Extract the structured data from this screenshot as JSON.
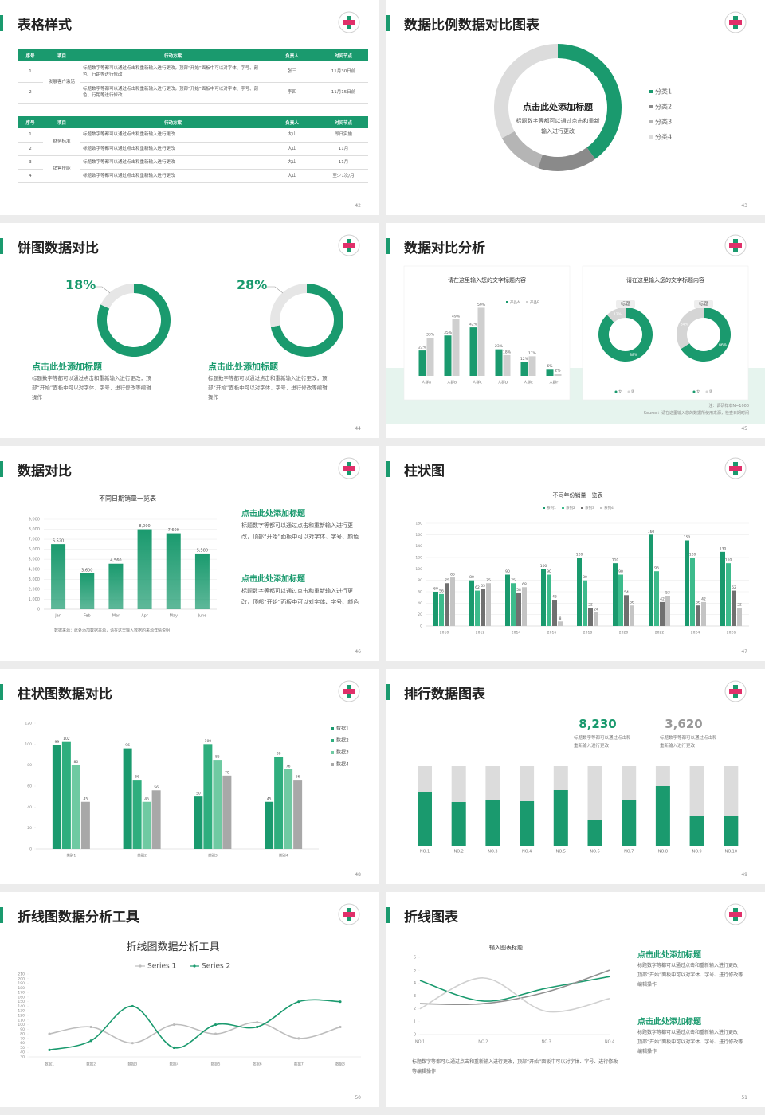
{
  "slides": [
    {
      "title": "表格样式",
      "page": "42",
      "tables": [
        {
          "header": [
            "序号",
            "项目",
            "行动方案",
            "负责人",
            "时间节点"
          ],
          "groups": [
            {
              "project": "发展客户激活",
              "rows": [
                [
                  "1",
                  "标题数字等都可以通过点击和重新输入进行更改，顶部“开始”面板中可以对字体、字号、颜色、行距等进行修改",
                  "张三",
                  "11月30日前"
                ],
                [
                  "2",
                  "标题数字等都可以通过点击和重新输入进行更改，顶部“开始”面板中可以对字体、字号、颜色、行距等进行修改",
                  "李四",
                  "11月15日前"
                ]
              ]
            }
          ]
        },
        {
          "header": [
            "序号",
            "项目",
            "行动方案",
            "负责人",
            "时间节点"
          ],
          "groups": [
            {
              "project": "财务标准",
              "rows": [
                [
                  "1",
                  "标题数字等都可以通过点击和重新输入进行更改",
                  "大山",
                  "即日实施"
                ],
                [
                  "2",
                  "标题数字等都可以通过点击和重新输入进行更改",
                  "大山",
                  "11月"
                ]
              ]
            },
            {
              "project": "销售技能",
              "rows": [
                [
                  "3",
                  "标题数字等都可以通过点击和重新输入进行更改",
                  "大山",
                  "11月"
                ],
                [
                  "4",
                  "标题数字等都可以通过点击和重新输入进行更改",
                  "大山",
                  "至少1次/月"
                ]
              ]
            }
          ]
        }
      ]
    },
    {
      "title": "数据比例数据对比图表",
      "page": "43",
      "chart": {
        "type": "donut",
        "heading": "点击此处添加标题",
        "text": "标题数字等都可以通过点击和重新输入进行更改",
        "categories": [
          "分类1",
          "分类2",
          "分类3",
          "分类4"
        ],
        "values": [
          40,
          15,
          12,
          33
        ],
        "colors": [
          "#1a9a6e",
          "#8a8a8a",
          "#b5b5b5",
          "#dcdcdc"
        ]
      }
    },
    {
      "title": "饼图数据对比",
      "page": "44",
      "charts": [
        {
          "type": "donut",
          "value": 18,
          "value_label": "18%",
          "color": "#e6e6e6",
          "base_color": "#1a9a6e",
          "heading": "点击此处添加标题",
          "text": "标题数字等都可以通过点击和重新输入进行更改，顶部“开始”面板中可以对字体、字号、进行修改等编辑操作"
        },
        {
          "type": "donut",
          "value": 28,
          "value_label": "28%",
          "color": "#e6e6e6",
          "base_color": "#1a9a6e",
          "heading": "点击此处添加标题",
          "text": "标题数字等都可以通过点击和重新输入进行更改，顶部“开始”面板中可以对字体、字号、进行修改等编辑操作"
        }
      ]
    },
    {
      "title": "数据对比分析",
      "page": "45",
      "charts": [
        {
          "type": "bar",
          "title": "请在这里输入您的文字标题内容",
          "categories": [
            "人群A",
            "人群B",
            "人群C",
            "人群D",
            "人群E",
            "人群F"
          ],
          "series": [
            {
              "name": "产品A",
              "color": "#1a9a6e",
              "values": [
                22,
                35,
                42,
                23,
                12,
                6
              ],
              "value_labels": [
                "22%",
                "35%",
                "42%",
                "23%",
                "12%",
                "6%"
              ]
            },
            {
              "name": "产品B",
              "color": "#cfcfcf",
              "values": [
                33,
                49,
                59,
                18,
                17,
                2
              ],
              "value_labels": [
                "33%",
                "49%",
                "59%",
                "18%",
                "17%",
                "2%"
              ]
            }
          ]
        },
        {
          "type": "donuts",
          "title": "请在这里输入您的文字标题内容",
          "categories": [
            "女",
            "男"
          ],
          "colors": [
            "#1a9a6e",
            "#d5d5d5"
          ],
          "items": [
            {
              "label": "标题",
              "values": [
                88,
                12
              ],
              "value_labels": [
                "88%",
                "12%"
              ]
            },
            {
              "label": "标题",
              "values": [
                66,
                34
              ],
              "value_labels": [
                "66%",
                "34%"
              ]
            }
          ]
        }
      ],
      "notes": [
        "注：调研样本N=1000",
        "Source：请在这里输入您的数据所使用来源，检查日期时间"
      ]
    },
    {
      "title": "数据对比",
      "page": "46",
      "chart": {
        "type": "bar",
        "title": "不同日期销量一览表",
        "categories": [
          "Jan",
          "Feb",
          "Mar",
          "Apr",
          "May",
          "June"
        ],
        "values": [
          6520,
          3600,
          4560,
          8000,
          7600,
          5580
        ],
        "value_labels": [
          "6,520",
          "3,600",
          "4,560",
          "8,000",
          "7,600",
          "5,580"
        ],
        "color": "#1a9a6e",
        "ylim": [
          0,
          9000
        ],
        "yticks": [
          0,
          {
            "value": 1000,
            "label": "1,000"
          },
          {
            "value": 2000,
            "label": "2,000"
          },
          {
            "value": 3000,
            "label": "3,000"
          },
          {
            "value": 4000,
            "label": "4,000"
          },
          {
            "value": 5000,
            "label": "5,000"
          },
          {
            "value": 6000,
            "label": "6,000"
          },
          {
            "value": 7000,
            "label": "7,000"
          },
          {
            "value": 8000,
            "label": "8,000"
          },
          {
            "value": 9000,
            "label": "9,000"
          }
        ],
        "grid": true
      },
      "note": "数据来源：此处添加数据来源，请在这里输入数据的来源详情说明",
      "texts": [
        {
          "heading": "点击此处添加标题",
          "body": "标题数字等都可以通过点击和重新输入进行更改，顶部“开始”面板中可以对字体、字号、颜色"
        },
        {
          "heading": "点击此处添加标题",
          "body": "标题数字等都可以通过点击和重新输入进行更改，顶部“开始”面板中可以对字体、字号、颜色"
        }
      ]
    },
    {
      "title": "柱状图",
      "page": "47",
      "chart": {
        "type": "bar",
        "title": "不同年份销量一览表",
        "categories": [
          "2010",
          "2012",
          "2014",
          "2016",
          "2018",
          "2020",
          "2022",
          "2024",
          "2026"
        ],
        "series": [
          {
            "name": "系列1",
            "color": "#1a9a6e",
            "values": [
              60,
              80,
              90,
              100,
              120,
              110,
              160,
              150,
              130
            ]
          },
          {
            "name": "系列2",
            "color": "#3dbb8c",
            "values": [
              56,
              62,
              75,
              90,
              80,
              90,
              96,
              120,
              110
            ]
          },
          {
            "name": "系列3",
            "color": "#707070",
            "values": [
              75,
              65,
              58,
              46,
              32,
              54,
              42,
              36,
              62
            ]
          },
          {
            "name": "系列4",
            "color": "#c4c4c4",
            "values": [
              85,
              75,
              68,
              8,
              24,
              36,
              53,
              42,
              32
            ]
          }
        ],
        "ylim": [
          0,
          180
        ],
        "yticks": [
          0,
          20,
          40,
          60,
          80,
          100,
          120,
          140,
          160,
          180
        ],
        "grid": true
      }
    },
    {
      "title": "柱状图数据对比",
      "page": "48",
      "chart": {
        "type": "bar",
        "categories": [
          "类别1",
          "类别2",
          "类别3",
          "类别4"
        ],
        "series": [
          {
            "name": "数据1",
            "color": "#1a9a6e",
            "values": [
              99,
              96,
              50,
              45
            ]
          },
          {
            "name": "数据2",
            "color": "#2fae7e",
            "values": [
              102,
              66,
              100,
              88
            ]
          },
          {
            "name": "数据3",
            "color": "#6fcaa2",
            "values": [
              80,
              45,
              85,
              76
            ]
          },
          {
            "name": "数据4",
            "color": "#a8a8a8",
            "values": [
              45,
              56,
              70,
              66
            ]
          }
        ],
        "ylim": [
          0,
          120
        ],
        "yticks": [
          0,
          20,
          40,
          60,
          80,
          100,
          120
        ],
        "grid": false
      }
    },
    {
      "title": "排行数据图表",
      "page": "49",
      "highlights": [
        {
          "value": "8,230",
          "color": "#1a9a6e",
          "text": "标题数字等都可以通过点击和重新输入进行更改"
        },
        {
          "value": "3,620",
          "color": "#999999",
          "text": "标题数字等都可以通过点击和重新输入进行更改"
        }
      ],
      "chart": {
        "type": "share-bar",
        "categories": [
          "NO.1",
          "NO.2",
          "NO.3",
          "NO.4",
          "NO.5",
          "NO.6",
          "NO.7",
          "NO.8",
          "NO.9",
          "NO.10"
        ],
        "values": [
          68,
          55,
          58,
          56,
          70,
          33,
          58,
          75,
          38,
          38
        ],
        "color": "#1a9a6e",
        "track_color": "#dcdcdc",
        "ylim": [
          0,
          100
        ]
      }
    },
    {
      "title": "折线图数据分析工具",
      "page": "50",
      "chart": {
        "type": "line",
        "title": "折线图数据分析工具",
        "categories": [
          "数据1",
          "数据2",
          "数据3",
          "数据4",
          "数据5",
          "数据6",
          "数据7",
          "数据8"
        ],
        "series": [
          {
            "name": "Series 1",
            "color": "#bdbdbd",
            "values": [
              80,
              95,
              60,
              100,
              80,
              105,
              70,
              95
            ]
          },
          {
            "name": "Series 2",
            "color": "#1a9a6e",
            "values": [
              45,
              65,
              140,
              50,
              100,
              95,
              150,
              150
            ]
          }
        ],
        "ylim": [
          30,
          210
        ],
        "yticks": [
          30,
          40,
          50,
          60,
          70,
          80,
          90,
          100,
          110,
          120,
          130,
          140,
          150,
          160,
          170,
          180,
          190,
          200,
          210
        ],
        "grid": false
      }
    },
    {
      "title": "折线图表",
      "page": "51",
      "chart": {
        "type": "line",
        "title": "输入图表标题",
        "categories": [
          "NO.1",
          "NO.2",
          "NO.3",
          "NO.4"
        ],
        "series": [
          {
            "color": "#1a9a6e",
            "values": [
              4.2,
              2.6,
              3.6,
              4.5
            ]
          },
          {
            "color": "#909090",
            "values": [
              2.4,
              2.4,
              3.3,
              5
            ]
          },
          {
            "color": "#d0d0d0",
            "values": [
              2,
              4.4,
              1.8,
              2.8
            ]
          }
        ],
        "ylim": [
          0,
          6
        ],
        "yticks": [
          0,
          1,
          2,
          3,
          4,
          5,
          6
        ],
        "grid": false
      },
      "bottom_text": "标题数字等都可以通过点击和重新输入进行更改，顶部“开始”面板中可以对字体、字号、进行修改等编辑操作",
      "texts": [
        {
          "heading": "点击此处添加标题",
          "body": "标题数字等都可以通过点击和重新输入进行更改，顶部“开始”面板中可以对字体、字号、进行修改等编辑操作"
        },
        {
          "heading": "点击此处添加标题",
          "body": "标题数字等都可以通过点击和重新输入进行更改，顶部“开始”面板中可以对字体、字号、进行修改等编辑操作"
        }
      ]
    }
  ]
}
